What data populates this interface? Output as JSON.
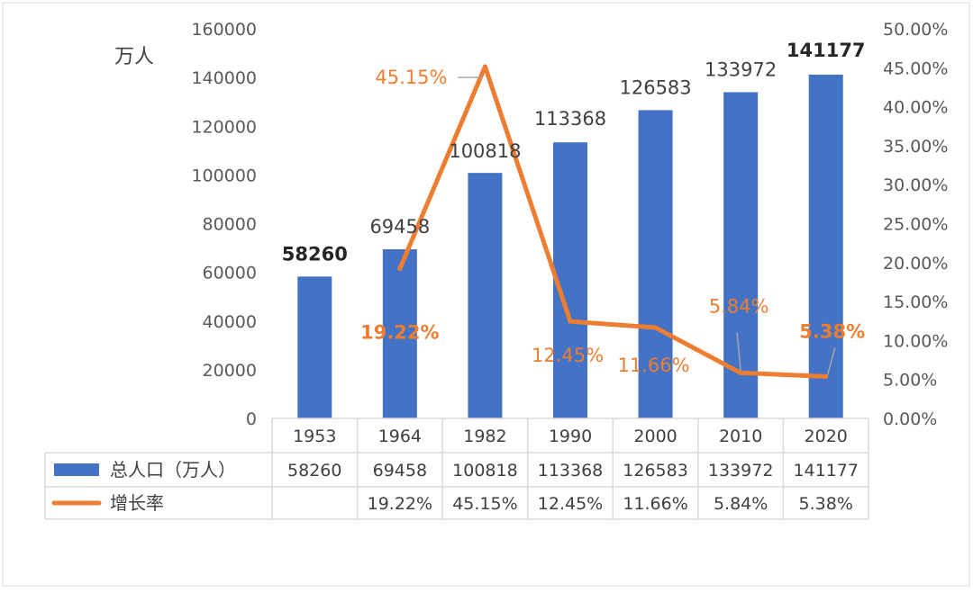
{
  "chart_data": {
    "type": "bar",
    "categories": [
      "1953",
      "1964",
      "1982",
      "1990",
      "2000",
      "2010",
      "2020"
    ],
    "y_left_unit_label": "万人",
    "y_left_range": [
      0,
      160000
    ],
    "y_left_ticks": [
      "0",
      "20000",
      "40000",
      "60000",
      "80000",
      "100000",
      "120000",
      "140000",
      "160000"
    ],
    "y_right_range": [
      0,
      0.5
    ],
    "y_right_ticks": [
      "0.00%",
      "5.00%",
      "10.00%",
      "15.00%",
      "20.00%",
      "25.00%",
      "30.00%",
      "35.00%",
      "40.00%",
      "45.00%",
      "50.00%"
    ],
    "series": [
      {
        "name": "总人口（万人）",
        "type": "bar",
        "axis": "left",
        "color": "#4472C4",
        "values": [
          58260,
          69458,
          100818,
          113368,
          126583,
          133972,
          141177
        ],
        "labels": [
          "58260",
          "69458",
          "100818",
          "113368",
          "126583",
          "133972",
          "141177"
        ],
        "table_labels": [
          "58260",
          "69458",
          "100818",
          "113368",
          "126583",
          "133972",
          "141177"
        ],
        "bold_labels": [
          true,
          false,
          false,
          false,
          false,
          false,
          true
        ]
      },
      {
        "name": "增长率",
        "type": "line",
        "axis": "right",
        "color": "#ED7D31",
        "values": [
          null,
          0.1922,
          0.4515,
          0.1245,
          0.1166,
          0.0584,
          0.0538
        ],
        "labels": [
          "",
          "19.22%",
          "45.15%",
          "12.45%",
          "11.66%",
          "5.84%",
          "5.38%"
        ],
        "table_labels": [
          "",
          "19.22%",
          "45.15%",
          "12.45%",
          "11.66%",
          "5.84%",
          "5.38%"
        ],
        "bold_labels": [
          false,
          true,
          false,
          false,
          false,
          false,
          true
        ]
      }
    ],
    "gridlines": false,
    "legend": "data-table"
  }
}
